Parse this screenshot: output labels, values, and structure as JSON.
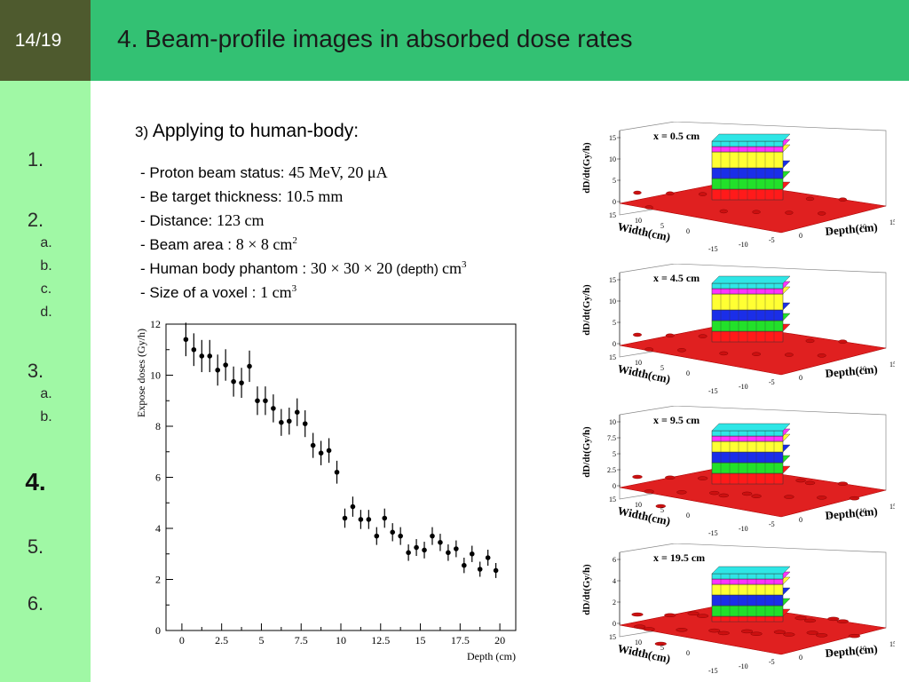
{
  "page_number": "14/19",
  "title": {
    "number": "4.",
    "text": "Beam-profile images in absorbed dose rates"
  },
  "sidebar": {
    "items": [
      {
        "label": "1."
      },
      {
        "label": "2.",
        "subitems": [
          "a.",
          "b.",
          "c.",
          "d."
        ]
      },
      {
        "label": "3.",
        "subitems": [
          "a.",
          "b."
        ]
      },
      {
        "label": "4.",
        "active": true
      },
      {
        "label": "5."
      },
      {
        "label": "6."
      }
    ]
  },
  "section": {
    "number": "3)",
    "heading": "Applying to human-body:"
  },
  "params": [
    {
      "label": "- Proton beam status: ",
      "value": "45 MeV, 20 μA"
    },
    {
      "label": "- Be target thickness: ",
      "value": "10.5 mm"
    },
    {
      "label": "- Distance: ",
      "value": "123 cm"
    },
    {
      "label": "- Beam area : ",
      "value": "8 × 8 cm",
      "sup": "2"
    },
    {
      "label": "- Human body phantom :  ",
      "value": "30 × 30 × 20",
      "extra": " (depth) ",
      "unit": "cm",
      "sup": "3"
    },
    {
      "label": "- Size of a voxel : ",
      "value": "1 cm",
      "sup": "3"
    }
  ],
  "colors": {
    "page_box": "#4e5a2e",
    "title_bar": "#33c173",
    "sidebar": "#a0f8a5"
  },
  "chart_data": [
    {
      "type": "scatter",
      "title": "",
      "xlabel": "Depth (cm)",
      "ylabel": "Expose doses (Gy/h)",
      "xlim": [
        -1,
        21
      ],
      "ylim": [
        0,
        12
      ],
      "xticks": [
        "0",
        "2.5",
        "5",
        "7.5",
        "10",
        "12.5",
        "15",
        "17.5",
        "20"
      ],
      "yticks": [
        "0",
        "2",
        "4",
        "6",
        "8",
        "10",
        "12"
      ],
      "error_bars": true,
      "x": [
        0.25,
        0.75,
        1.25,
        1.75,
        2.25,
        2.75,
        3.25,
        3.75,
        4.25,
        4.75,
        5.25,
        5.75,
        6.25,
        6.75,
        7.25,
        7.75,
        8.25,
        8.75,
        9.25,
        9.75,
        10.25,
        10.75,
        11.25,
        11.75,
        12.25,
        12.75,
        13.25,
        13.75,
        14.25,
        14.75,
        15.25,
        15.75,
        16.25,
        16.75,
        17.25,
        17.75,
        18.25,
        18.75,
        19.25,
        19.75
      ],
      "y": [
        11.4,
        11.0,
        10.75,
        10.75,
        10.2,
        10.4,
        9.75,
        9.7,
        10.35,
        9.0,
        9.0,
        8.7,
        8.15,
        8.2,
        8.55,
        8.1,
        7.25,
        6.95,
        7.05,
        6.2,
        4.4,
        4.85,
        4.35,
        4.35,
        3.7,
        4.4,
        3.85,
        3.7,
        3.05,
        3.25,
        3.15,
        3.7,
        3.45,
        3.05,
        3.2,
        2.55,
        3.0,
        2.4,
        2.85,
        2.35
      ]
    },
    {
      "type": "bar3d",
      "title": "x = 0.5 cm",
      "xlabel": "Width(cm)",
      "ylabel": "Depth(cm)",
      "zlabel": "dD/dt(Gy/h)",
      "zticks": [
        "0",
        "5",
        "10",
        "15"
      ],
      "xticks": [
        "15",
        "10",
        "5",
        "0",
        "-5",
        "-10",
        "-15"
      ],
      "yticks": [
        "-15",
        "-10",
        "-5",
        "0",
        "5",
        "10",
        "15"
      ]
    },
    {
      "type": "bar3d",
      "title": "x = 4.5 cm",
      "xlabel": "Width(cm)",
      "ylabel": "Depth(cm)",
      "zlabel": "dD/dt(Gy/h)",
      "zticks": [
        "0",
        "5",
        "10",
        "15"
      ],
      "xticks": [
        "15",
        "10",
        "5",
        "0",
        "-5",
        "-10",
        "-15"
      ],
      "yticks": [
        "-15",
        "-10",
        "-5",
        "0",
        "5",
        "10",
        "15"
      ]
    },
    {
      "type": "bar3d",
      "title": "x = 9.5 cm",
      "xlabel": "Width(cm)",
      "ylabel": "Depth(cm)",
      "zlabel": "dD/dt(Gy/h)",
      "zticks": [
        "0",
        "2.5",
        "5",
        "7.5",
        "10"
      ],
      "xticks": [
        "15",
        "10",
        "5",
        "0",
        "-5",
        "-10",
        "-15"
      ],
      "yticks": [
        "-15",
        "-10",
        "-5",
        "0",
        "5",
        "10",
        "15"
      ]
    },
    {
      "type": "bar3d",
      "title": "x = 19.5 cm",
      "xlabel": "Width(cm)",
      "ylabel": "Depth(cm)",
      "zlabel": "dD/dt(Gy/h)",
      "zticks": [
        "0",
        "2",
        "4",
        "6"
      ],
      "xticks": [
        "15",
        "10",
        "5",
        "0",
        "-5",
        "-10",
        "-15"
      ],
      "yticks": [
        "-15",
        "-10",
        "-5",
        "0",
        "5",
        "10",
        "15"
      ]
    }
  ]
}
